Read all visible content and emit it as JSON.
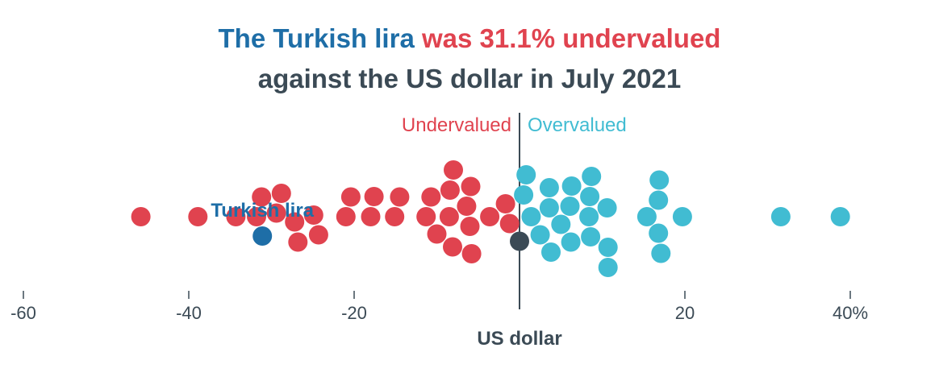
{
  "title": {
    "line1_part1": "The Turkish lira",
    "line1_part2": " was 31.1% undervalued",
    "line2": "against the US dollar in July 2021"
  },
  "colors": {
    "undervalued": "#e0434f",
    "overvalued": "#41bcd2",
    "highlight": "#1e6ea7",
    "reference": "#3b4a55",
    "axis": "#3b4a55"
  },
  "chart_data": {
    "type": "scatter",
    "subtype": "beeswarm",
    "xlim": [
      -60,
      40
    ],
    "x_ticks": [
      -60,
      -40,
      -20,
      0,
      20,
      40
    ],
    "x_tick_labels": [
      "-60",
      "-40",
      "-20",
      "",
      "20",
      "40%"
    ],
    "zone_labels": {
      "left": "Undervalued",
      "right": "Overvalued"
    },
    "reference": {
      "label": "US dollar",
      "value": 0
    },
    "highlight": {
      "label": "Turkish lira",
      "value": -31.1
    },
    "points": [
      -45.8,
      -38.9,
      -34.3,
      -31.8,
      -31.1,
      -31.2,
      -29.4,
      -28.8,
      -27.2,
      -26.8,
      -24.9,
      -24.3,
      -21.0,
      -20.4,
      -18.0,
      -17.6,
      -15.1,
      -14.5,
      -11.3,
      -10.7,
      -10.0,
      -8.4,
      -8.5,
      -8.1,
      -8.0,
      -5.9,
      -6.0,
      -5.8,
      -6.4,
      -3.6,
      -1.7,
      -1.2,
      0.0,
      0.5,
      0.8,
      1.4,
      2.5,
      3.6,
      3.8,
      3.6,
      5.0,
      6.2,
      6.1,
      6.3,
      8.4,
      8.6,
      8.5,
      8.7,
      10.7,
      10.7,
      10.6,
      15.4,
      16.8,
      16.9,
      17.1,
      16.8,
      19.7,
      31.6,
      38.8
    ]
  }
}
